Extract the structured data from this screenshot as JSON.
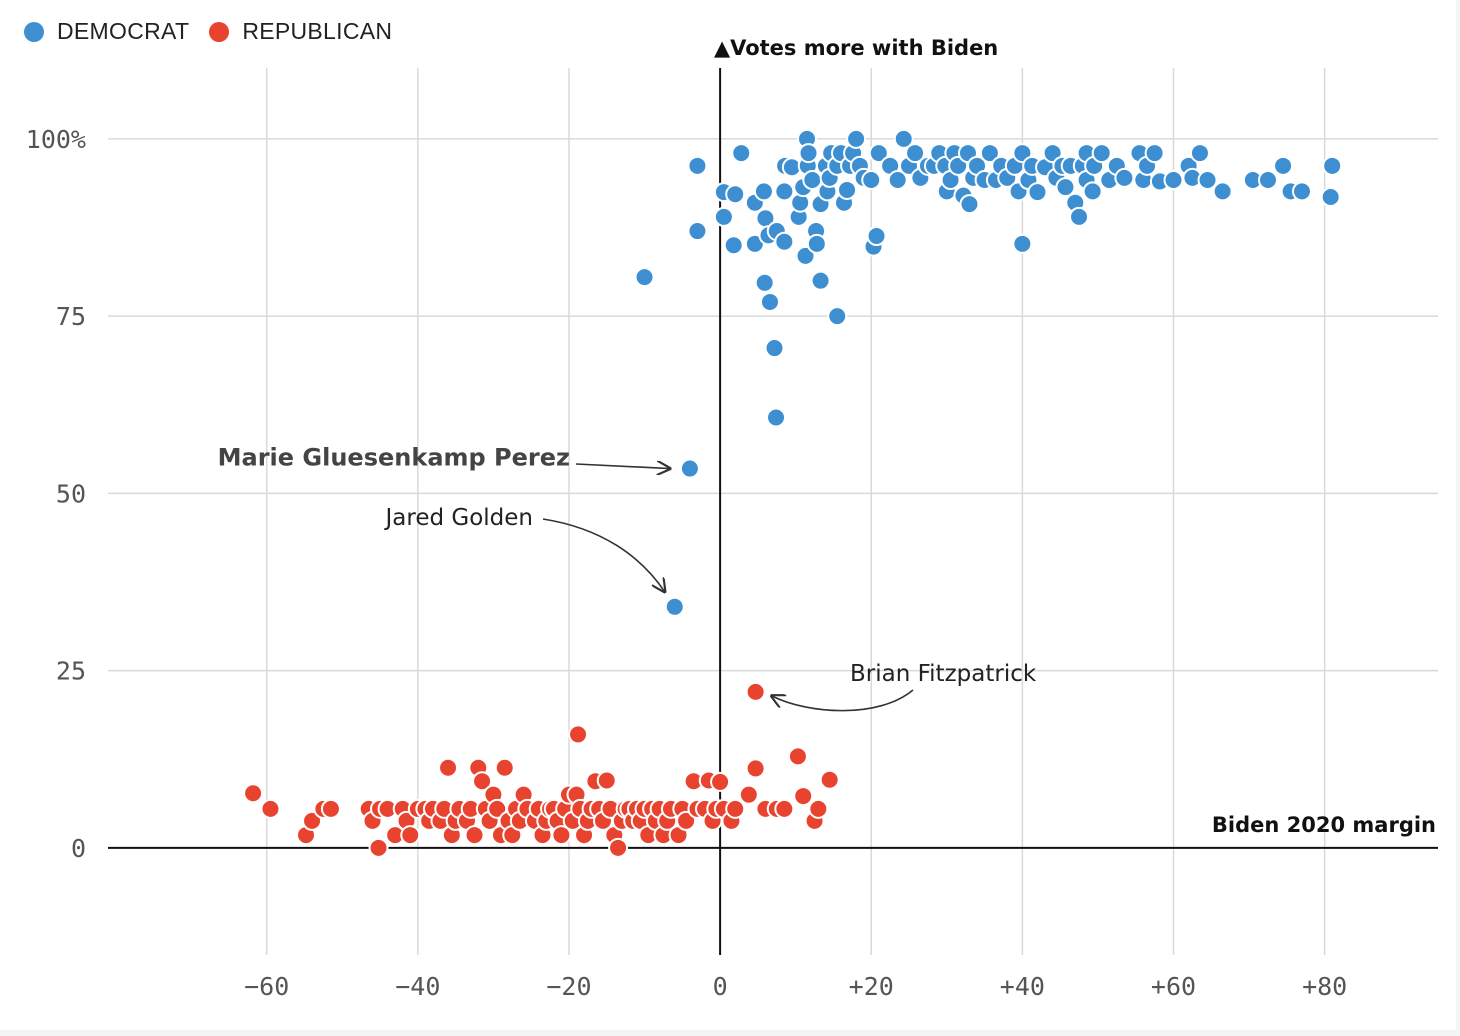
{
  "legend": [
    {
      "label": "DEMOCRAT",
      "color": "#3d8fd1"
    },
    {
      "label": "REPUBLICAN",
      "color": "#e8432e"
    }
  ],
  "chart_data": {
    "type": "scatter",
    "title": "",
    "xlabel": "Biden 2020 margin",
    "ylabel": "▲Votes more with Biden",
    "xlim": [
      -81,
      95
    ],
    "ylim": [
      -13,
      110
    ],
    "xticks": [
      -60,
      -40,
      -20,
      0,
      20,
      40,
      60,
      80
    ],
    "xtick_labels": [
      "−60",
      "−40",
      "−20",
      "0",
      "+20",
      "+40",
      "+60",
      "+80"
    ],
    "yticks": [
      0,
      25,
      50,
      75,
      100
    ],
    "ytick_labels": [
      "0",
      "25",
      "50",
      "75",
      "100%"
    ],
    "grid": true,
    "annotations": [
      {
        "text": "Marie Gluesenkamp Perez",
        "x": -4,
        "y": 53.5,
        "bold": true
      },
      {
        "text": "Jared Golden",
        "x": -6,
        "y": 34,
        "bold": false
      },
      {
        "text": "Brian Fitzpatrick",
        "x": 4.7,
        "y": 22,
        "bold": false
      }
    ],
    "series": [
      {
        "name": "DEMOCRAT",
        "color": "#3d8fd1",
        "points": [
          [
            -10,
            80.5
          ],
          [
            -3,
            96.2
          ],
          [
            -3,
            87
          ],
          [
            0.5,
            92.5
          ],
          [
            0.5,
            89
          ],
          [
            2,
            92.2
          ],
          [
            1.8,
            85
          ],
          [
            2.8,
            98
          ],
          [
            4.6,
            91
          ],
          [
            4.6,
            85.2
          ],
          [
            5.8,
            92.6
          ],
          [
            6,
            88.8
          ],
          [
            5.9,
            79.7
          ],
          [
            6.6,
            77
          ],
          [
            6.4,
            86.4
          ],
          [
            7.5,
            87
          ],
          [
            7.2,
            70.5
          ],
          [
            7.4,
            60.7
          ],
          [
            8.5,
            85.5
          ],
          [
            8.5,
            92.6
          ],
          [
            8.6,
            96.2
          ],
          [
            9.5,
            96
          ],
          [
            10.4,
            89
          ],
          [
            10.6,
            91
          ],
          [
            11,
            93.2
          ],
          [
            11.3,
            83.5
          ],
          [
            11.5,
            100
          ],
          [
            11.6,
            96.2
          ],
          [
            11.7,
            98
          ],
          [
            12.2,
            94.2
          ],
          [
            12.7,
            87
          ],
          [
            12.8,
            85.2
          ],
          [
            13.3,
            90.8
          ],
          [
            13.3,
            80
          ],
          [
            14,
            96.2
          ],
          [
            14.2,
            92.6
          ],
          [
            14.5,
            94.5
          ],
          [
            14.7,
            98
          ],
          [
            15.5,
            96.2
          ],
          [
            15.5,
            75
          ],
          [
            16,
            98
          ],
          [
            16.4,
            91
          ],
          [
            16.8,
            92.8
          ],
          [
            17.2,
            96.2
          ],
          [
            17.6,
            98
          ],
          [
            18,
            100
          ],
          [
            18.5,
            96.2
          ],
          [
            19,
            94.5
          ],
          [
            20,
            94.2
          ],
          [
            20.3,
            84.8
          ],
          [
            20.7,
            86.3
          ],
          [
            21,
            98
          ],
          [
            22.5,
            96.2
          ],
          [
            23.5,
            94.2
          ],
          [
            24.3,
            100
          ],
          [
            25,
            96.2
          ],
          [
            25.8,
            98
          ],
          [
            26.5,
            94.5
          ],
          [
            27.5,
            96.2
          ],
          [
            28.3,
            96.2
          ],
          [
            29,
            98
          ],
          [
            29.8,
            96.2
          ],
          [
            30,
            92.6
          ],
          [
            30.5,
            94.2
          ],
          [
            31,
            98
          ],
          [
            31.5,
            96.2
          ],
          [
            32.2,
            92
          ],
          [
            32.8,
            98
          ],
          [
            33,
            90.8
          ],
          [
            33.5,
            94.5
          ],
          [
            34,
            96.2
          ],
          [
            35,
            94.2
          ],
          [
            35.7,
            98
          ],
          [
            36.5,
            94.2
          ],
          [
            37.2,
            96.2
          ],
          [
            38,
            94.5
          ],
          [
            39,
            96.2
          ],
          [
            39.5,
            92.6
          ],
          [
            40,
            98
          ],
          [
            40,
            85.2
          ],
          [
            40.8,
            94.2
          ],
          [
            41.3,
            96.2
          ],
          [
            42,
            92.5
          ],
          [
            43,
            96
          ],
          [
            44,
            98
          ],
          [
            44.5,
            94.5
          ],
          [
            45.3,
            96.2
          ],
          [
            45.7,
            93.2
          ],
          [
            46.4,
            96.2
          ],
          [
            47,
            91
          ],
          [
            47.5,
            89
          ],
          [
            48,
            96.2
          ],
          [
            48.5,
            94.2
          ],
          [
            48.5,
            98
          ],
          [
            49.3,
            92.6
          ],
          [
            49.5,
            96.2
          ],
          [
            50.5,
            98
          ],
          [
            51.5,
            94.2
          ],
          [
            52.5,
            96.2
          ],
          [
            53.5,
            94.5
          ],
          [
            55.5,
            98
          ],
          [
            56,
            94.2
          ],
          [
            56.5,
            96.2
          ],
          [
            57.5,
            98
          ],
          [
            58.2,
            94
          ],
          [
            60,
            94.2
          ],
          [
            62,
            96.2
          ],
          [
            62.5,
            94.5
          ],
          [
            63.5,
            98
          ],
          [
            64.5,
            94.2
          ],
          [
            66.5,
            92.6
          ],
          [
            70.5,
            94.2
          ],
          [
            72.5,
            94.2
          ],
          [
            74.5,
            96.2
          ],
          [
            75.5,
            92.6
          ],
          [
            77,
            92.6
          ],
          [
            80.8,
            91.8
          ],
          [
            81,
            96.2
          ],
          [
            -4,
            53.5
          ],
          [
            -6,
            34
          ]
        ]
      },
      {
        "name": "REPUBLICAN",
        "color": "#e8432e",
        "points": [
          [
            -61.8,
            7.7
          ],
          [
            -59.5,
            5.5
          ],
          [
            -54.8,
            1.8
          ],
          [
            -54,
            3.8
          ],
          [
            -52.5,
            5.5
          ],
          [
            -51.5,
            5.5
          ],
          [
            -46.5,
            5.5
          ],
          [
            -46,
            3.8
          ],
          [
            -45.2,
            0
          ],
          [
            -45,
            5.5
          ],
          [
            -44,
            5.5
          ],
          [
            -43,
            1.8
          ],
          [
            -42,
            5.5
          ],
          [
            -41.5,
            3.8
          ],
          [
            -41,
            1.8
          ],
          [
            -40,
            5.5
          ],
          [
            -39,
            5.5
          ],
          [
            -38.5,
            3.8
          ],
          [
            -38,
            5.5
          ],
          [
            -37,
            3.8
          ],
          [
            -36.5,
            5.5
          ],
          [
            -36,
            11.3
          ],
          [
            -35.5,
            1.8
          ],
          [
            -35,
            3.8
          ],
          [
            -34.5,
            5.5
          ],
          [
            -33.5,
            3.8
          ],
          [
            -33,
            5.5
          ],
          [
            -32.5,
            1.8
          ],
          [
            -32,
            11.3
          ],
          [
            -31.5,
            9.4
          ],
          [
            -31,
            5.5
          ],
          [
            -30.5,
            3.8
          ],
          [
            -30,
            7.5
          ],
          [
            -29.5,
            5.5
          ],
          [
            -29,
            1.8
          ],
          [
            -28.5,
            11.3
          ],
          [
            -28,
            3.8
          ],
          [
            -27.5,
            1.8
          ],
          [
            -27,
            5.5
          ],
          [
            -26.5,
            3.8
          ],
          [
            -26,
            7.5
          ],
          [
            -25.5,
            5.5
          ],
          [
            -24.5,
            3.8
          ],
          [
            -24,
            5.5
          ],
          [
            -23.5,
            1.8
          ],
          [
            -23,
            3.8
          ],
          [
            -22.5,
            5.5
          ],
          [
            -22,
            5.5
          ],
          [
            -21.5,
            3.8
          ],
          [
            -21,
            1.8
          ],
          [
            -20.5,
            5.5
          ],
          [
            -20,
            7.5
          ],
          [
            -19.5,
            3.8
          ],
          [
            -19,
            7.5
          ],
          [
            -18.8,
            16
          ],
          [
            -18.5,
            5.5
          ],
          [
            -18,
            1.8
          ],
          [
            -17.5,
            3.8
          ],
          [
            -17,
            5.5
          ],
          [
            -16.5,
            9.4
          ],
          [
            -16,
            5.5
          ],
          [
            -15.5,
            3.8
          ],
          [
            -15,
            9.5
          ],
          [
            -14.5,
            5.5
          ],
          [
            -14,
            1.8
          ],
          [
            -13.5,
            0
          ],
          [
            -13,
            3.8
          ],
          [
            -12.5,
            5.5
          ],
          [
            -12,
            5.5
          ],
          [
            -11.5,
            3.8
          ],
          [
            -11,
            5.5
          ],
          [
            -10.5,
            3.8
          ],
          [
            -10,
            5.5
          ],
          [
            -9.5,
            1.8
          ],
          [
            -9,
            5.5
          ],
          [
            -8.5,
            3.8
          ],
          [
            -8,
            5.5
          ],
          [
            -7.5,
            1.8
          ],
          [
            -7,
            3.8
          ],
          [
            -6.5,
            5.5
          ],
          [
            -5.5,
            1.8
          ],
          [
            -5,
            5.5
          ],
          [
            -4.5,
            3.8
          ],
          [
            -3.5,
            9.4
          ],
          [
            -3,
            5.5
          ],
          [
            -2,
            5.5
          ],
          [
            -1.5,
            9.5
          ],
          [
            -1,
            3.8
          ],
          [
            -0.5,
            5.5
          ],
          [
            0,
            9.3
          ],
          [
            0.5,
            5.5
          ],
          [
            1.5,
            3.8
          ],
          [
            2,
            5.5
          ],
          [
            3.8,
            7.5
          ],
          [
            4.7,
            11.2
          ],
          [
            6,
            5.5
          ],
          [
            7.5,
            5.5
          ],
          [
            8.5,
            5.5
          ],
          [
            10.3,
            12.9
          ],
          [
            11,
            7.3
          ],
          [
            12.5,
            3.8
          ],
          [
            13,
            5.5
          ],
          [
            14.5,
            9.6
          ],
          [
            4.7,
            22
          ]
        ]
      }
    ]
  }
}
